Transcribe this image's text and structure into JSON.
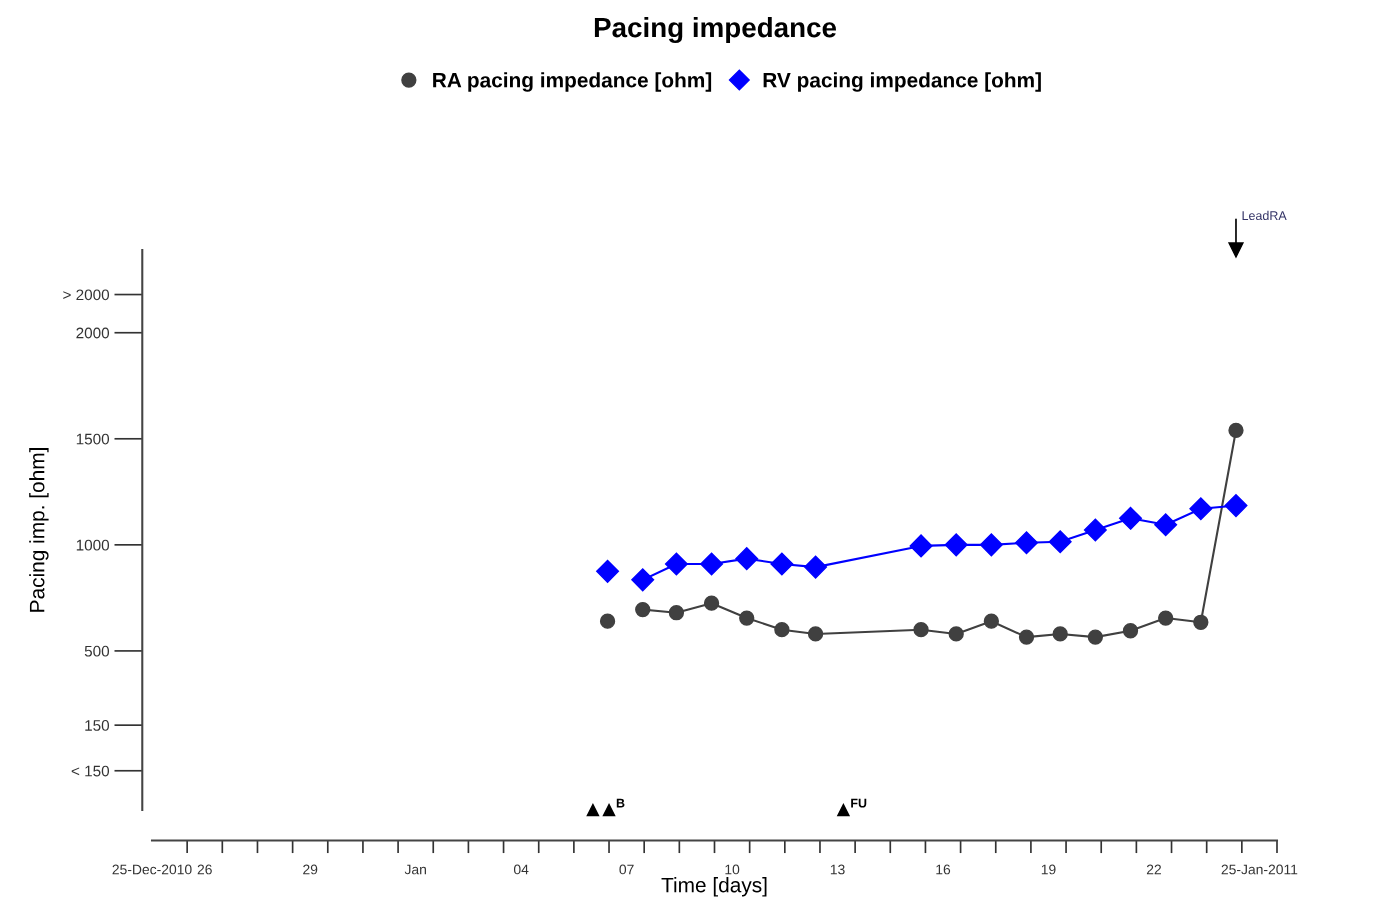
{
  "chart_data": {
    "type": "line",
    "title": "Pacing impedance",
    "xlabel": "Time [days]",
    "ylabel": "Pacing imp. [ohm]",
    "x": [
      "2011-01-06T23:00",
      "2011-01-07T11:00",
      "2011-01-07T23:00",
      "2011-01-08T22:00",
      "2011-01-09T22:00",
      "2011-01-10T22:00",
      "2011-01-11T22:00",
      "2011-01-12T21:00",
      "2011-01-15T21:00",
      "2011-01-16T21:00",
      "2011-01-17T21:00",
      "2011-01-18T21:00",
      "2011-01-19T20:00",
      "2011-01-20T20:00",
      "2011-01-21T20:00",
      "2011-01-22T20:00",
      "2011-01-23T20:00",
      "2011-01-24T20:00"
    ],
    "series": [
      {
        "name": "RA pacing impedance [ohm]",
        "color": "#404040",
        "marker": "circle",
        "values": [
          640,
          null,
          695,
          680,
          725,
          655,
          600,
          580,
          600,
          580,
          640,
          565,
          580,
          565,
          595,
          655,
          635,
          1540
        ]
      },
      {
        "name": "RV pacing impedance [ohm]",
        "color": "#0000ff",
        "marker": "diamond",
        "values": [
          875,
          null,
          835,
          910,
          910,
          935,
          910,
          895,
          995,
          1000,
          1000,
          1010,
          1015,
          1070,
          1125,
          1095,
          1170,
          1185
        ]
      },
      {
        "type": "scatter",
        "color": "#000000",
        "marker": "triangle",
        "x": [
          "2011-01-06T13:00",
          "2011-01-07",
          "2011-01-13T16:00"
        ],
        "values": [
          -250,
          -250,
          -250
        ],
        "value_labels": [
          null,
          "B",
          "FU"
        ]
      },
      {
        "type": "scatter",
        "color": "#000000",
        "marker": "triangle",
        "x": [
          "2011-01-24T20:00"
        ],
        "values": [
          2390
        ],
        "value_labels": [
          "LeadRA"
        ]
      }
    ],
    "xlim": [
      "2010-12-25",
      "2011-01-26"
    ],
    "xticks": [
      {
        "value": "2010-12-25",
        "label": "25-Dec-2010"
      },
      {
        "value": "2010-12-26T12:00",
        "label": "26"
      },
      {
        "value": "2010-12-29T12:00",
        "label": "29"
      },
      {
        "value": "2011-01-01T12:00",
        "label": "Jan"
      },
      {
        "value": "2011-01-04T12:00",
        "label": "04"
      },
      {
        "value": "2011-01-07T12:00",
        "label": "07"
      },
      {
        "value": "2011-01-10T12:00",
        "label": "10"
      },
      {
        "value": "2011-01-13T12:00",
        "label": "13"
      },
      {
        "value": "2011-01-16T12:00",
        "label": "16"
      },
      {
        "value": "2011-01-19T12:00",
        "label": "19"
      },
      {
        "value": "2011-01-22T12:00",
        "label": "22"
      },
      {
        "value": "2011-01-25T12:00",
        "label": "25-Jan-2011"
      }
    ],
    "ylim": [
      -250,
      2390
    ],
    "yticks": [
      {
        "value": -65,
        "label": "< 150"
      },
      150,
      500,
      1000,
      1500,
      2000,
      {
        "value": 2180,
        "label": "> 2000"
      }
    ],
    "legend": "top",
    "grid": false,
    "line_style": "solid"
  }
}
